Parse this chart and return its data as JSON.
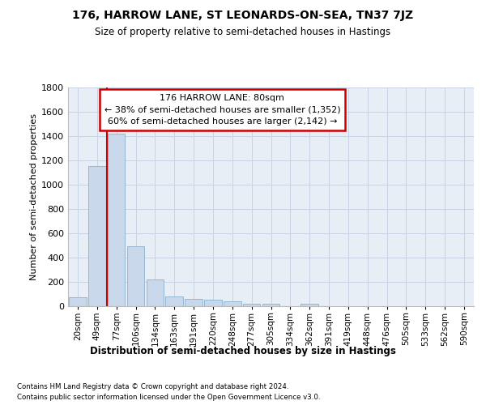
{
  "title": "176, HARROW LANE, ST LEONARDS-ON-SEA, TN37 7JZ",
  "subtitle": "Size of property relative to semi-detached houses in Hastings",
  "xlabel": "Distribution of semi-detached houses by size in Hastings",
  "ylabel": "Number of semi-detached properties",
  "footnote1": "Contains HM Land Registry data © Crown copyright and database right 2024.",
  "footnote2": "Contains public sector information licensed under the Open Government Licence v3.0.",
  "annotation_line1": "176 HARROW LANE: 80sqm",
  "annotation_line2": "← 38% of semi-detached houses are smaller (1,352)",
  "annotation_line3": "60% of semi-detached houses are larger (2,142) →",
  "bar_color": "#c8d8ea",
  "bar_edge_color": "#8ab0cc",
  "line_color": "#cc0000",
  "annotation_box_color": "#cc0000",
  "grid_color": "#c8d4e4",
  "bg_color": "#e8eef6",
  "categories": [
    "20sqm",
    "49sqm",
    "77sqm",
    "106sqm",
    "134sqm",
    "163sqm",
    "191sqm",
    "220sqm",
    "248sqm",
    "277sqm",
    "305sqm",
    "334sqm",
    "362sqm",
    "391sqm",
    "419sqm",
    "448sqm",
    "476sqm",
    "505sqm",
    "533sqm",
    "562sqm",
    "590sqm"
  ],
  "values": [
    70,
    1150,
    1420,
    490,
    215,
    75,
    60,
    50,
    35,
    20,
    15,
    0,
    15,
    0,
    0,
    0,
    0,
    0,
    0,
    0,
    0
  ],
  "ylim": [
    0,
    1800
  ],
  "yticks": [
    0,
    200,
    400,
    600,
    800,
    1000,
    1200,
    1400,
    1600,
    1800
  ],
  "red_line_x": 1.5
}
